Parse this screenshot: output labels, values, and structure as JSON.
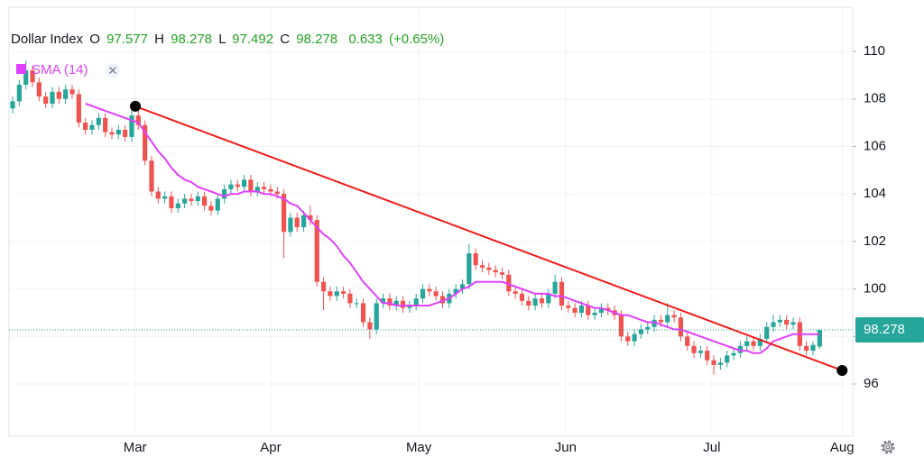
{
  "chart_data": {
    "type": "candlestick",
    "title": "Dollar Index",
    "header_labels": {
      "open": "O",
      "high": "H",
      "low": "L",
      "close": "C"
    },
    "change": 0.633,
    "change_percent": {
      "value": 0.65,
      "label": "(+0.65%)"
    },
    "indicator": "SMA (14)",
    "up_color": "#26a69a",
    "down_color": "#ef5350",
    "sma_color": "#e040fb",
    "trend_color": "#f21b1b",
    "xlim": [
      -0.55,
      127
    ],
    "xticks": [
      {
        "value": 18.5,
        "label": "Mar"
      },
      {
        "value": 39,
        "label": "Apr"
      },
      {
        "value": 61.4,
        "label": "May"
      },
      {
        "value": 83.6,
        "label": "Jun"
      },
      {
        "value": 105.7,
        "label": "Jul"
      },
      {
        "value": 125.4,
        "label": "Aug"
      }
    ],
    "ylim": [
      93.8,
      111.86
    ],
    "yticks": [
      96,
      98,
      100,
      102,
      104,
      106,
      108,
      110
    ],
    "grid": true,
    "open": [
      107.6,
      107.9,
      108.6,
      109.2,
      108.7,
      108.1,
      107.8,
      108.3,
      108.0,
      108.4,
      108.2,
      107.0,
      106.7,
      106.9,
      107.2,
      106.6,
      106.5,
      106.7,
      106.4,
      107.3,
      106.9,
      105.4,
      104.1,
      103.8,
      103.9,
      103.4,
      103.6,
      103.8,
      103.7,
      103.9,
      103.5,
      103.3,
      103.8,
      104.2,
      104.4,
      104.3,
      104.6,
      104.1,
      104.3,
      104.2,
      104.1,
      104.0,
      102.4,
      103.0,
      102.6,
      103.1,
      102.9,
      100.3,
      99.9,
      99.7,
      99.9,
      99.8,
      99.4,
      99.4,
      98.6,
      98.3,
      99.4,
      99.6,
      99.3,
      99.5,
      99.2,
      99.3,
      99.6,
      100.0,
      99.9,
      99.7,
      99.4,
      99.8,
      100.0,
      100.2,
      101.5,
      101.0,
      100.9,
      100.8,
      100.7,
      100.6,
      99.9,
      99.8,
      99.5,
      99.3,
      99.6,
      99.4,
      99.8,
      100.3,
      99.3,
      99.2,
      99.0,
      99.3,
      98.9,
      99.0,
      99.2,
      99.1,
      98.9,
      98.0,
      97.8,
      98.1,
      98.3,
      98.4,
      98.7,
      98.6,
      98.9,
      98.8,
      98.0,
      97.6,
      97.3,
      97.4,
      97.0,
      96.8,
      96.9,
      97.2,
      97.3,
      97.6,
      97.8,
      97.6,
      97.9,
      98.4,
      98.6,
      98.7,
      98.5,
      98.6,
      97.6,
      97.4,
      97.577
    ],
    "high": [
      108.1,
      108.8,
      109.6,
      109.4,
      108.9,
      108.3,
      108.5,
      108.5,
      108.6,
      108.6,
      108.4,
      107.2,
      107.1,
      107.4,
      107.4,
      106.8,
      106.9,
      106.9,
      107.7,
      107.5,
      107.1,
      105.6,
      104.3,
      104.1,
      104.1,
      103.8,
      104.0,
      104.0,
      104.1,
      104.1,
      103.7,
      104.0,
      104.4,
      104.6,
      104.6,
      104.8,
      104.8,
      104.5,
      104.5,
      104.4,
      104.3,
      104.2,
      103.2,
      103.2,
      103.3,
      103.5,
      103.1,
      100.5,
      100.1,
      100.1,
      100.1,
      100.0,
      99.6,
      99.6,
      98.8,
      99.6,
      99.8,
      99.8,
      99.7,
      99.7,
      99.5,
      99.8,
      100.2,
      100.2,
      100.1,
      99.9,
      100.0,
      100.2,
      100.4,
      101.9,
      101.7,
      101.2,
      101.1,
      101.0,
      100.9,
      100.8,
      100.1,
      100.0,
      99.7,
      99.8,
      99.8,
      100.0,
      100.6,
      100.5,
      99.5,
      99.4,
      99.5,
      99.5,
      99.2,
      99.4,
      99.4,
      99.3,
      99.1,
      98.2,
      98.3,
      98.5,
      98.6,
      98.9,
      98.9,
      99.4,
      99.1,
      99.0,
      98.2,
      97.8,
      97.6,
      97.6,
      97.2,
      97.1,
      97.4,
      97.5,
      97.8,
      98.0,
      98.0,
      98.1,
      98.6,
      98.9,
      98.9,
      98.9,
      98.8,
      98.8,
      97.8,
      97.8,
      98.278
    ],
    "low": [
      107.4,
      107.7,
      108.4,
      108.5,
      107.9,
      107.6,
      107.6,
      107.8,
      107.8,
      108.0,
      106.8,
      106.5,
      106.5,
      106.7,
      106.4,
      106.3,
      106.3,
      106.2,
      106.2,
      106.7,
      105.2,
      103.9,
      103.6,
      103.6,
      103.2,
      103.2,
      103.4,
      103.5,
      103.5,
      103.3,
      103.1,
      103.1,
      103.6,
      104.0,
      104.1,
      104.1,
      103.9,
      103.9,
      104.0,
      103.9,
      103.8,
      101.3,
      102.2,
      102.4,
      102.4,
      102.7,
      100.1,
      99.1,
      99.5,
      99.5,
      99.6,
      99.2,
      99.2,
      98.4,
      97.9,
      98.1,
      99.2,
      99.1,
      99.1,
      99.0,
      99.0,
      99.1,
      99.4,
      99.7,
      99.5,
      99.2,
      99.2,
      99.6,
      99.8,
      100.0,
      100.8,
      100.7,
      100.6,
      100.5,
      100.4,
      99.7,
      99.6,
      99.3,
      99.1,
      99.1,
      99.2,
      99.2,
      99.6,
      99.1,
      99.0,
      98.8,
      98.8,
      98.7,
      98.7,
      98.8,
      98.9,
      98.7,
      97.8,
      97.6,
      97.6,
      97.9,
      98.1,
      98.2,
      98.4,
      98.4,
      98.6,
      97.8,
      97.4,
      97.1,
      97.1,
      96.8,
      96.4,
      96.6,
      96.7,
      97.0,
      97.1,
      97.4,
      97.4,
      97.4,
      97.7,
      98.2,
      98.4,
      98.3,
      98.3,
      97.4,
      97.2,
      97.2,
      97.492
    ],
    "close": [
      107.9,
      108.6,
      109.2,
      108.7,
      108.1,
      107.8,
      108.3,
      108.0,
      108.4,
      108.2,
      107.0,
      106.7,
      106.9,
      107.2,
      106.6,
      106.5,
      106.7,
      106.4,
      107.3,
      106.9,
      105.4,
      104.1,
      103.8,
      103.9,
      103.4,
      103.6,
      103.8,
      103.7,
      103.9,
      103.5,
      103.3,
      103.8,
      104.2,
      104.4,
      104.3,
      104.6,
      104.1,
      104.3,
      104.2,
      104.1,
      104.0,
      102.4,
      103.0,
      102.6,
      103.1,
      102.9,
      100.3,
      99.9,
      99.7,
      99.9,
      99.8,
      99.4,
      99.4,
      98.6,
      98.3,
      99.4,
      99.6,
      99.3,
      99.5,
      99.2,
      99.3,
      99.6,
      100.0,
      99.9,
      99.7,
      99.4,
      99.8,
      100.0,
      100.2,
      101.5,
      101.0,
      100.9,
      100.8,
      100.7,
      100.6,
      99.9,
      99.8,
      99.5,
      99.3,
      99.6,
      99.4,
      99.8,
      100.3,
      99.3,
      99.2,
      99.0,
      99.3,
      98.9,
      99.0,
      99.2,
      99.1,
      98.9,
      98.0,
      97.8,
      98.1,
      98.3,
      98.4,
      98.7,
      98.6,
      98.9,
      98.8,
      98.0,
      97.6,
      97.3,
      97.4,
      97.0,
      96.8,
      96.9,
      97.2,
      97.3,
      97.6,
      97.8,
      97.6,
      97.9,
      98.4,
      98.6,
      98.7,
      98.5,
      98.6,
      97.6,
      97.4,
      97.645,
      98.278
    ],
    "sma": [
      null,
      null,
      null,
      null,
      null,
      null,
      null,
      null,
      null,
      null,
      null,
      107.8,
      107.7,
      107.6,
      107.5,
      107.4,
      107.3,
      107.2,
      107.1,
      107.0,
      106.6,
      106.2,
      105.8,
      105.5,
      105.1,
      104.8,
      104.6,
      104.5,
      104.3,
      104.2,
      104.1,
      104.0,
      103.9,
      104.0,
      104.0,
      104.1,
      104.1,
      104.1,
      104.0,
      104.0,
      103.9,
      103.8,
      103.6,
      103.5,
      103.2,
      102.9,
      102.6,
      102.3,
      102.1,
      101.8,
      101.4,
      101.1,
      100.7,
      100.3,
      100.0,
      99.7,
      99.4,
      99.4,
      99.3,
      99.3,
      99.3,
      99.3,
      99.3,
      99.3,
      99.4,
      99.5,
      99.6,
      99.8,
      100.0,
      100.1,
      100.3,
      100.3,
      100.3,
      100.3,
      100.3,
      100.2,
      100.1,
      100.0,
      99.9,
      99.8,
      99.8,
      99.8,
      99.7,
      99.7,
      99.6,
      99.5,
      99.4,
      99.3,
      99.2,
      99.2,
      99.1,
      99.0,
      98.9,
      98.9,
      98.8,
      98.7,
      98.6,
      98.6,
      98.5,
      98.4,
      98.3,
      98.3,
      98.2,
      98.1,
      98.0,
      97.9,
      97.8,
      97.7,
      97.6,
      97.5,
      97.4,
      97.4,
      97.3,
      97.3,
      97.5,
      97.8,
      97.9,
      98.0,
      98.1,
      98.1,
      98.1,
      98.1,
      98.1
    ],
    "trendline": {
      "x": [
        18.55,
        125.4
      ],
      "y": [
        107.69,
        96.57
      ]
    }
  }
}
